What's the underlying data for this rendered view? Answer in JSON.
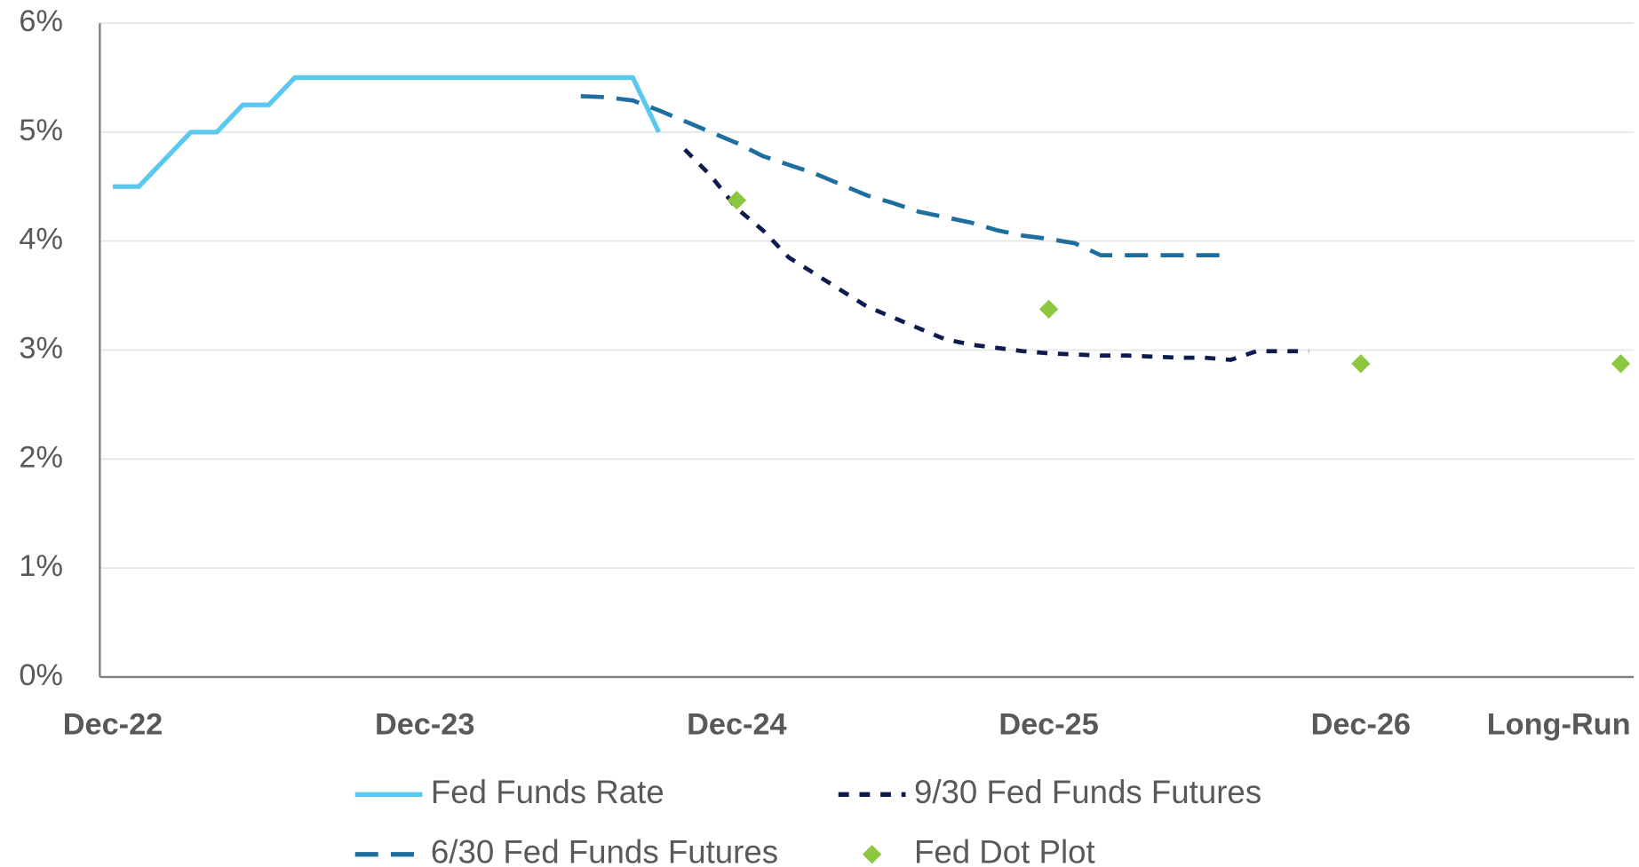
{
  "chart_data": {
    "type": "line",
    "categories": [
      "Dec-22",
      null,
      null,
      null,
      null,
      null,
      null,
      null,
      null,
      null,
      null,
      null,
      "Dec-23",
      null,
      null,
      null,
      null,
      null,
      null,
      null,
      null,
      null,
      null,
      null,
      "Dec-24",
      null,
      null,
      null,
      null,
      null,
      null,
      null,
      null,
      null,
      null,
      null,
      "Dec-25",
      null,
      null,
      null,
      null,
      null,
      null,
      null,
      null,
      null,
      null,
      null,
      "Dec-26",
      null,
      null,
      null,
      null,
      null,
      null,
      null,
      null,
      null,
      "Long-Run"
    ],
    "series": [
      {
        "name": "Fed Funds Rate",
        "color": "#5bc8ef",
        "line_style": "solid",
        "values": [
          4.5,
          4.5,
          4.75,
          5.0,
          5.0,
          5.25,
          5.25,
          5.5,
          5.5,
          5.5,
          5.5,
          5.5,
          5.5,
          5.5,
          5.5,
          5.5,
          5.5,
          5.5,
          5.5,
          5.5,
          5.5,
          5.0,
          null,
          null,
          null,
          null,
          null,
          null,
          null,
          null,
          null,
          null,
          null,
          null,
          null,
          null,
          null,
          null,
          null,
          null,
          null,
          null,
          null,
          null,
          null,
          null,
          null,
          null,
          null,
          null,
          null,
          null,
          null,
          null,
          null,
          null,
          null,
          null,
          null
        ]
      },
      {
        "name": "9/30 Fed Funds Futures",
        "color": "#0d1b4f",
        "line_style": "short-dash",
        "values": [
          null,
          null,
          null,
          null,
          null,
          null,
          null,
          null,
          null,
          null,
          null,
          null,
          null,
          null,
          null,
          null,
          null,
          null,
          null,
          null,
          null,
          null,
          4.84,
          4.6,
          4.3,
          4.1,
          3.85,
          3.7,
          3.55,
          3.4,
          3.3,
          3.2,
          3.1,
          3.05,
          3.02,
          2.99,
          2.97,
          2.96,
          2.95,
          2.95,
          2.94,
          2.93,
          2.93,
          2.91,
          2.99,
          2.99,
          2.99,
          null,
          null,
          null,
          null,
          null,
          null,
          null,
          null,
          null,
          null,
          null,
          null
        ]
      },
      {
        "name": "6/30 Fed Funds Futures",
        "color": "#1e6e9f",
        "line_style": "long-dash",
        "values": [
          null,
          null,
          null,
          null,
          null,
          null,
          null,
          null,
          null,
          null,
          null,
          null,
          null,
          null,
          null,
          null,
          null,
          null,
          5.33,
          5.32,
          5.29,
          5.2,
          5.1,
          5.0,
          4.9,
          4.78,
          4.7,
          4.62,
          4.52,
          4.42,
          4.35,
          4.27,
          4.22,
          4.17,
          4.1,
          4.05,
          4.02,
          3.98,
          3.87,
          3.87,
          3.87,
          3.87,
          3.87,
          3.87,
          null,
          null,
          null,
          null,
          null,
          null,
          null,
          null,
          null,
          null,
          null,
          null,
          null,
          null,
          null
        ]
      },
      {
        "name": "Fed Dot Plot",
        "color": "#8dc63f",
        "line_style": "marker",
        "marker": "diamond",
        "values": [
          null,
          null,
          null,
          null,
          null,
          null,
          null,
          null,
          null,
          null,
          null,
          null,
          null,
          null,
          null,
          null,
          null,
          null,
          null,
          null,
          null,
          null,
          null,
          null,
          4.375,
          null,
          null,
          null,
          null,
          null,
          null,
          null,
          null,
          null,
          null,
          null,
          3.375,
          null,
          null,
          null,
          null,
          null,
          null,
          null,
          null,
          null,
          null,
          null,
          2.875,
          null,
          null,
          null,
          null,
          null,
          null,
          null,
          null,
          null,
          2.875
        ]
      }
    ],
    "ylim": [
      0,
      6
    ],
    "yticks": [
      {
        "value": 0,
        "label": "0%"
      },
      {
        "value": 1,
        "label": "1%"
      },
      {
        "value": 2,
        "label": "2%"
      },
      {
        "value": 3,
        "label": "3%"
      },
      {
        "value": 4,
        "label": "4%"
      },
      {
        "value": 5,
        "label": "5%"
      },
      {
        "value": 6,
        "label": "6%"
      }
    ],
    "grid": true,
    "legend": "bottom"
  }
}
